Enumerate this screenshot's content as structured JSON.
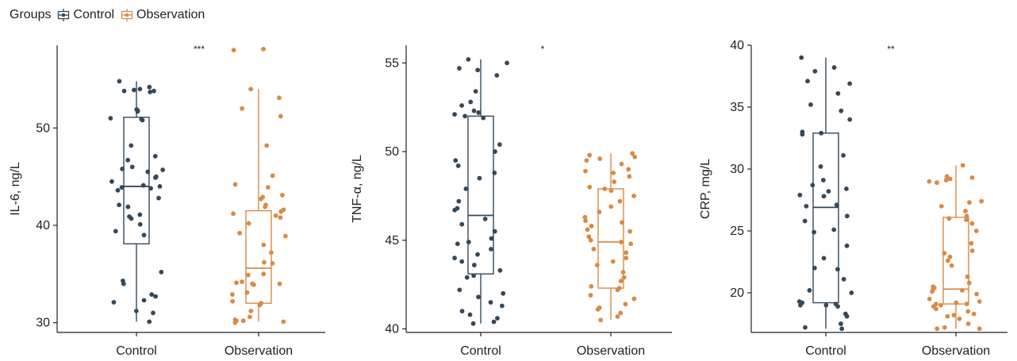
{
  "legend": {
    "title": "Groups",
    "items": [
      {
        "label": "Control",
        "color": "#34495a"
      },
      {
        "label": "Observation",
        "color": "#d98a45"
      }
    ]
  },
  "chart_data": [
    {
      "type": "boxplot",
      "ylabel": "IL-6, ng/L",
      "ylim": [
        29,
        58.5
      ],
      "yticks": [
        30,
        40,
        50
      ],
      "categories": [
        "Control",
        "Observation"
      ],
      "significance": "***",
      "series": [
        {
          "name": "Control",
          "box": {
            "whisker_low": 30.1,
            "q1": 38.1,
            "median": 44.0,
            "q3": 51.1,
            "whisker_high": 54.8
          },
          "points": [
            54.8,
            54.2,
            54.0,
            53.9,
            53.8,
            53.8,
            53.7,
            51.9,
            51.8,
            51.7,
            51.0,
            50.9,
            50.8,
            48.2,
            47.1,
            46.7,
            46.0,
            45.8,
            45.7,
            45.5,
            45.0,
            44.9,
            44.5,
            44.1,
            44.0,
            43.9,
            43.8,
            43.6,
            42.8,
            42.1,
            41.9,
            41.1,
            40.9,
            40.7,
            40.1,
            39.4,
            39.0,
            35.2,
            34.3,
            34.0,
            32.9,
            32.7,
            32.3,
            32.1,
            31.2,
            31.0,
            30.1
          ]
        },
        {
          "name": "Observation",
          "box": {
            "whisker_low": 30.1,
            "q1": 32.0,
            "median": 35.6,
            "q3": 41.5,
            "whisker_high": 54.0
          },
          "points": [
            58.1,
            58.0,
            54.0,
            53.1,
            52.0,
            51.2,
            48.2,
            45.1,
            44.2,
            43.9,
            43.1,
            42.9,
            42.7,
            42.1,
            41.9,
            41.6,
            41.4,
            41.2,
            41.0,
            40.8,
            40.2,
            39.2,
            38.9,
            38.0,
            37.2,
            36.2,
            36.1,
            35.0,
            34.9,
            34.2,
            34.1,
            34.0,
            34.0,
            33.9,
            33.1,
            32.9,
            32.2,
            32.0,
            31.8,
            31.2,
            30.6,
            30.3,
            30.2,
            30.1,
            30.0,
            30.2,
            31.9
          ]
        }
      ]
    },
    {
      "type": "boxplot",
      "ylabel": "TNF-α, ng/L",
      "ylim": [
        39.8,
        56
      ],
      "yticks": [
        40,
        45,
        50,
        55
      ],
      "categories": [
        "Control",
        "Observation"
      ],
      "significance": "*",
      "series": [
        {
          "name": "Control",
          "box": {
            "whisker_low": 40.3,
            "q1": 43.1,
            "median": 46.4,
            "q3": 52.0,
            "whisker_high": 55.2
          },
          "points": [
            55.2,
            55.0,
            54.7,
            54.6,
            54.3,
            53.4,
            52.8,
            52.6,
            52.3,
            52.2,
            52.1,
            52.0,
            51.9,
            50.4,
            50.0,
            49.5,
            49.2,
            48.8,
            48.5,
            47.9,
            47.2,
            46.8,
            46.7,
            46.2,
            45.9,
            45.5,
            45.1,
            44.9,
            44.8,
            44.5,
            44.2,
            44.0,
            43.8,
            43.6,
            43.3,
            43.0,
            42.9,
            42.2,
            42.0,
            41.8,
            41.5,
            41.3,
            41.0,
            40.8,
            40.6,
            40.4,
            40.3
          ]
        },
        {
          "name": "Observation",
          "box": {
            "whisker_low": 40.5,
            "q1": 42.3,
            "median": 44.9,
            "q3": 47.9,
            "whisker_high": 49.9
          },
          "points": [
            49.9,
            49.8,
            49.7,
            49.6,
            49.5,
            49.3,
            49.0,
            48.9,
            48.8,
            48.6,
            48.3,
            48.0,
            47.9,
            47.8,
            47.5,
            47.2,
            46.9,
            46.6,
            46.3,
            46.1,
            46.0,
            45.8,
            45.6,
            45.5,
            45.2,
            45.0,
            44.9,
            44.8,
            44.5,
            44.3,
            44.0,
            43.8,
            43.6,
            43.2,
            42.9,
            42.7,
            42.4,
            42.3,
            42.2,
            41.9,
            41.7,
            41.4,
            41.2,
            41.1,
            40.9,
            40.7,
            40.5
          ]
        }
      ]
    },
    {
      "type": "boxplot",
      "ylabel": "CRP, mg/L",
      "ylim": [
        16.8,
        40
      ],
      "yticks": [
        20,
        25,
        30,
        35,
        40
      ],
      "categories": [
        "Control",
        "Observation"
      ],
      "significance": "**",
      "series": [
        {
          "name": "Control",
          "box": {
            "whisker_low": 17.1,
            "q1": 19.2,
            "median": 26.9,
            "q3": 32.9,
            "whisker_high": 39.0
          },
          "points": [
            39.0,
            38.2,
            37.9,
            37.1,
            36.9,
            36.1,
            35.2,
            34.7,
            34.0,
            33.0,
            32.9,
            32.8,
            31.1,
            30.2,
            29.1,
            28.7,
            28.4,
            28.2,
            27.9,
            27.8,
            27.1,
            27.0,
            26.2,
            25.8,
            25.1,
            24.9,
            23.8,
            22.8,
            22.0,
            21.9,
            21.1,
            20.2,
            20.0,
            19.3,
            19.2,
            19.1,
            19.0,
            19.0,
            18.9,
            18.3,
            18.1,
            17.5,
            17.2,
            17.1
          ]
        },
        {
          "name": "Observation",
          "box": {
            "whisker_low": 17.1,
            "q1": 19.1,
            "median": 20.3,
            "q3": 26.1,
            "whisker_high": 30.3
          },
          "points": [
            30.3,
            29.4,
            29.3,
            29.2,
            29.1,
            29.0,
            28.9,
            27.4,
            27.3,
            27.0,
            26.6,
            26.2,
            26.0,
            25.9,
            25.6,
            25.0,
            24.0,
            23.4,
            23.2,
            22.9,
            22.6,
            22.2,
            21.3,
            20.8,
            20.5,
            20.4,
            20.3,
            20.2,
            20.1,
            19.9,
            19.5,
            19.3,
            19.2,
            19.1,
            19.1,
            19.0,
            18.9,
            18.7,
            18.3,
            18.2,
            18.1,
            17.9,
            17.5,
            17.2,
            17.1,
            17.1,
            18.5
          ]
        }
      ]
    }
  ]
}
